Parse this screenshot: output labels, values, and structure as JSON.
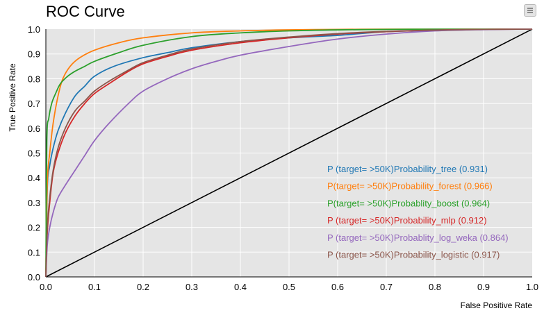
{
  "chart_data": {
    "type": "line",
    "title": "ROC Curve",
    "xlabel": "False Positive Rate",
    "ylabel": "True Positive Rate",
    "xlim": [
      0,
      1
    ],
    "ylim": [
      0,
      1
    ],
    "grid": true,
    "legend_position": "bottom-right",
    "background": "#e5e5e5",
    "x_ticks": [
      "0.0",
      "0.1",
      "0.2",
      "0.3",
      "0.4",
      "0.5",
      "0.6",
      "0.7",
      "0.8",
      "0.9",
      "1.0"
    ],
    "y_ticks": [
      "0.0",
      "0.1",
      "0.2",
      "0.3",
      "0.4",
      "0.5",
      "0.6",
      "0.7",
      "0.8",
      "0.9",
      "1.0"
    ],
    "diagonal": {
      "x": [
        0,
        1
      ],
      "y": [
        0,
        1
      ],
      "color": "#000000"
    },
    "series": [
      {
        "name": "P (target= >50K)Probability_tree (0.931)",
        "color": "#1f77b4",
        "x": [
          0,
          0.003,
          0.008,
          0.015,
          0.025,
          0.04,
          0.06,
          0.08,
          0.1,
          0.14,
          0.2,
          0.25,
          0.3,
          0.4,
          0.5,
          0.6,
          0.7,
          0.8,
          0.9,
          1
        ],
        "y": [
          0,
          0.36,
          0.45,
          0.52,
          0.59,
          0.66,
          0.73,
          0.77,
          0.81,
          0.85,
          0.885,
          0.905,
          0.925,
          0.95,
          0.965,
          0.975,
          0.99,
          0.995,
          0.999,
          1
        ]
      },
      {
        "name": "P(target= >50K)Probability_forest (0.966)",
        "color": "#ff7f0e",
        "x": [
          0,
          0.003,
          0.008,
          0.015,
          0.025,
          0.035,
          0.05,
          0.07,
          0.1,
          0.15,
          0.2,
          0.3,
          0.4,
          0.5,
          0.6,
          0.7,
          0.8,
          0.9,
          1
        ],
        "y": [
          0,
          0.38,
          0.5,
          0.62,
          0.73,
          0.8,
          0.85,
          0.885,
          0.915,
          0.945,
          0.965,
          0.985,
          0.993,
          0.997,
          0.999,
          1,
          1,
          1,
          1
        ]
      },
      {
        "name": "P(target= >50K)Probablity_boost (0.964)",
        "color": "#2ca02c",
        "x": [
          0,
          0.002,
          0.006,
          0.012,
          0.02,
          0.03,
          0.045,
          0.06,
          0.08,
          0.1,
          0.15,
          0.2,
          0.3,
          0.4,
          0.5,
          0.6,
          0.7,
          0.8,
          0.9,
          1
        ],
        "y": [
          0,
          0.55,
          0.64,
          0.7,
          0.74,
          0.78,
          0.81,
          0.83,
          0.85,
          0.87,
          0.905,
          0.935,
          0.97,
          0.985,
          0.993,
          0.997,
          0.999,
          1,
          1,
          1
        ]
      },
      {
        "name": "P (target= >50K)Probability_mlp (0.912)",
        "color": "#d62728",
        "x": [
          0,
          0.003,
          0.008,
          0.015,
          0.025,
          0.04,
          0.06,
          0.08,
          0.1,
          0.13,
          0.17,
          0.2,
          0.25,
          0.3,
          0.4,
          0.5,
          0.6,
          0.7,
          0.8,
          0.9,
          1
        ],
        "y": [
          0,
          0.18,
          0.3,
          0.42,
          0.5,
          0.58,
          0.65,
          0.7,
          0.74,
          0.78,
          0.83,
          0.86,
          0.89,
          0.915,
          0.945,
          0.965,
          0.98,
          0.99,
          0.996,
          0.999,
          1
        ]
      },
      {
        "name": "P (target= >50K)Probablity_log_weka (0.864)",
        "color": "#9467bd",
        "x": [
          0,
          0.003,
          0.008,
          0.015,
          0.025,
          0.04,
          0.06,
          0.08,
          0.1,
          0.13,
          0.17,
          0.2,
          0.25,
          0.3,
          0.35,
          0.4,
          0.5,
          0.6,
          0.7,
          0.8,
          0.9,
          1
        ],
        "y": [
          0,
          0.13,
          0.2,
          0.26,
          0.32,
          0.37,
          0.43,
          0.49,
          0.55,
          0.62,
          0.7,
          0.75,
          0.8,
          0.84,
          0.87,
          0.895,
          0.93,
          0.96,
          0.98,
          0.993,
          0.998,
          1
        ]
      },
      {
        "name": "P (target= >50K)Probability_logistic (0.917)",
        "color": "#8c564b",
        "x": [
          0,
          0.003,
          0.008,
          0.015,
          0.025,
          0.04,
          0.06,
          0.08,
          0.1,
          0.13,
          0.17,
          0.2,
          0.25,
          0.3,
          0.4,
          0.5,
          0.6,
          0.7,
          0.8,
          0.9,
          1
        ],
        "y": [
          0,
          0.2,
          0.32,
          0.43,
          0.52,
          0.6,
          0.67,
          0.71,
          0.75,
          0.79,
          0.835,
          0.865,
          0.895,
          0.92,
          0.95,
          0.968,
          0.982,
          0.991,
          0.996,
          0.999,
          1
        ]
      }
    ]
  }
}
